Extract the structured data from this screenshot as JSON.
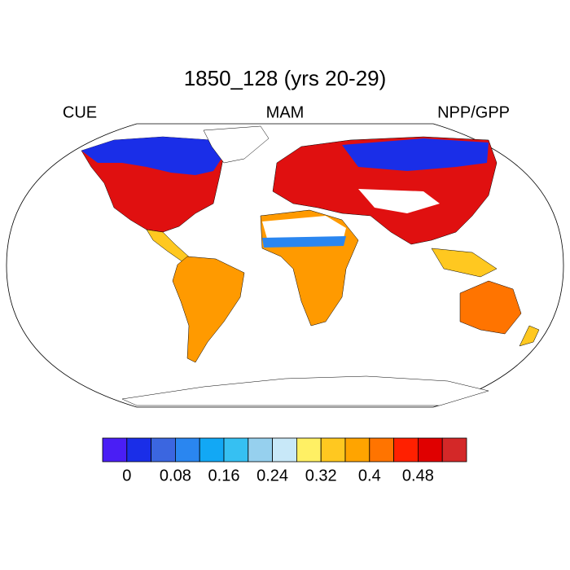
{
  "title": "1850_128 (yrs 20-29)",
  "left_label": "CUE",
  "center_label": "MAM",
  "right_label": "NPP/GPP",
  "colorbar": {
    "clim": [
      -0.04,
      0.56
    ],
    "colors": [
      "#4a1ef5",
      "#1a2ee8",
      "#3b66e0",
      "#2a86f0",
      "#12a8f5",
      "#36c0f2",
      "#96d0ee",
      "#c8e8f8",
      "#fff064",
      "#ffc820",
      "#ffa400",
      "#ff7400",
      "#ff2000",
      "#e00000",
      "#d42828"
    ],
    "ticks": [
      0,
      0.08,
      0.16,
      0.24,
      0.32,
      0.4,
      0.48
    ]
  }
}
